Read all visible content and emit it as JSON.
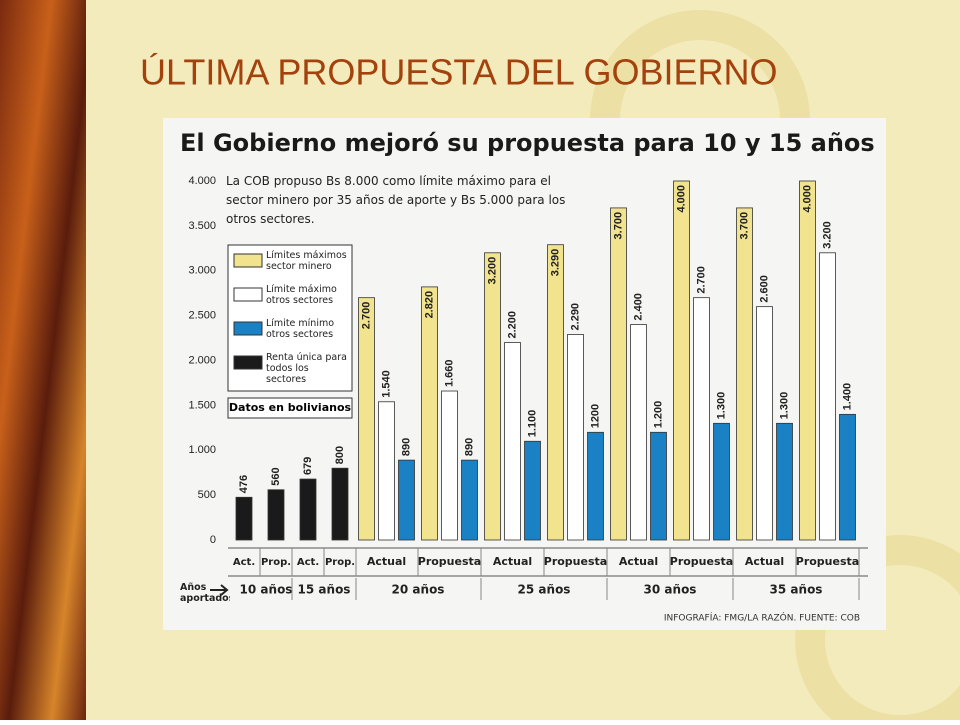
{
  "slide_title": "ÚLTIMA PROPUESTA DEL GOBIERNO",
  "chart_data": {
    "type": "bar",
    "title": "El Gobierno mejoró su propuesta para 10 y 15 años",
    "note": "La COB propuso Bs 8.000 como límite máximo para el sector minero  por 35 años de aporte y Bs 5.000 para los otros sectores.",
    "units_note": "Datos en bolivianos",
    "x_label": "Años aportados",
    "credit": "INFOGRAFÍA: FMG/LA RAZÓN. FUENTE: COB",
    "categories": [
      "Act.",
      "Prop.",
      "Act.",
      "Prop.",
      "Actual",
      "Propuesta",
      "Actual",
      "Propuesta",
      "Actual",
      "Propuesta",
      "Actual",
      "Propuesta"
    ],
    "groups": [
      {
        "label": "10 años",
        "span": 2
      },
      {
        "label": "15 años",
        "span": 2
      },
      {
        "label": "20 años",
        "span": 2
      },
      {
        "label": "25 años",
        "span": 2
      },
      {
        "label": "30 años",
        "span": 2
      },
      {
        "label": "35 años",
        "span": 2
      }
    ],
    "series": [
      {
        "name": "Límites máximos sector minero",
        "color": "#f2e38e",
        "values": [
          null,
          null,
          null,
          null,
          2700,
          2820,
          3200,
          3290,
          3700,
          4000,
          3700,
          4000
        ],
        "value_labels": [
          null,
          null,
          null,
          null,
          "2.700",
          "2.820",
          "3.200",
          "3.290",
          "3.700",
          "4.000",
          "3.700",
          "4.000"
        ]
      },
      {
        "name": "Límite máximo otros sectores",
        "color": "#ffffff",
        "values": [
          null,
          null,
          null,
          null,
          1540,
          1660,
          2200,
          2290,
          2400,
          2700,
          2600,
          3200
        ],
        "value_labels": [
          null,
          null,
          null,
          null,
          "1.540",
          "1.660",
          "2.200",
          "2.290",
          "2.400",
          "2.700",
          "2.600",
          "3.200"
        ]
      },
      {
        "name": "Límite mínimo otros sectores",
        "color": "#1a82c4",
        "values": [
          null,
          null,
          null,
          null,
          890,
          890,
          1100,
          1200,
          1200,
          1300,
          1300,
          1400
        ],
        "value_labels": [
          null,
          null,
          null,
          null,
          "890",
          "890",
          "1.100",
          "1200",
          "1.200",
          "1.300",
          "1.300",
          "1.400"
        ]
      },
      {
        "name": "Renta única para todos los sectores",
        "color": "#1a1a1a",
        "values": [
          476,
          560,
          679,
          800,
          null,
          null,
          null,
          null,
          null,
          null,
          null,
          null
        ]
      }
    ],
    "ylim": [
      0,
      4000
    ],
    "yticks": [
      0,
      500,
      {
        "value": 1000,
        "label": "1.000"
      },
      {
        "value": 1500,
        "label": "1.500"
      },
      {
        "value": 2000,
        "label": "2.000"
      },
      {
        "value": 2500,
        "label": "2.500"
      },
      {
        "value": 3000,
        "label": "3.000"
      },
      {
        "value": 3500,
        "label": "3.500"
      },
      {
        "value": 4000,
        "label": "4.000"
      }
    ]
  }
}
